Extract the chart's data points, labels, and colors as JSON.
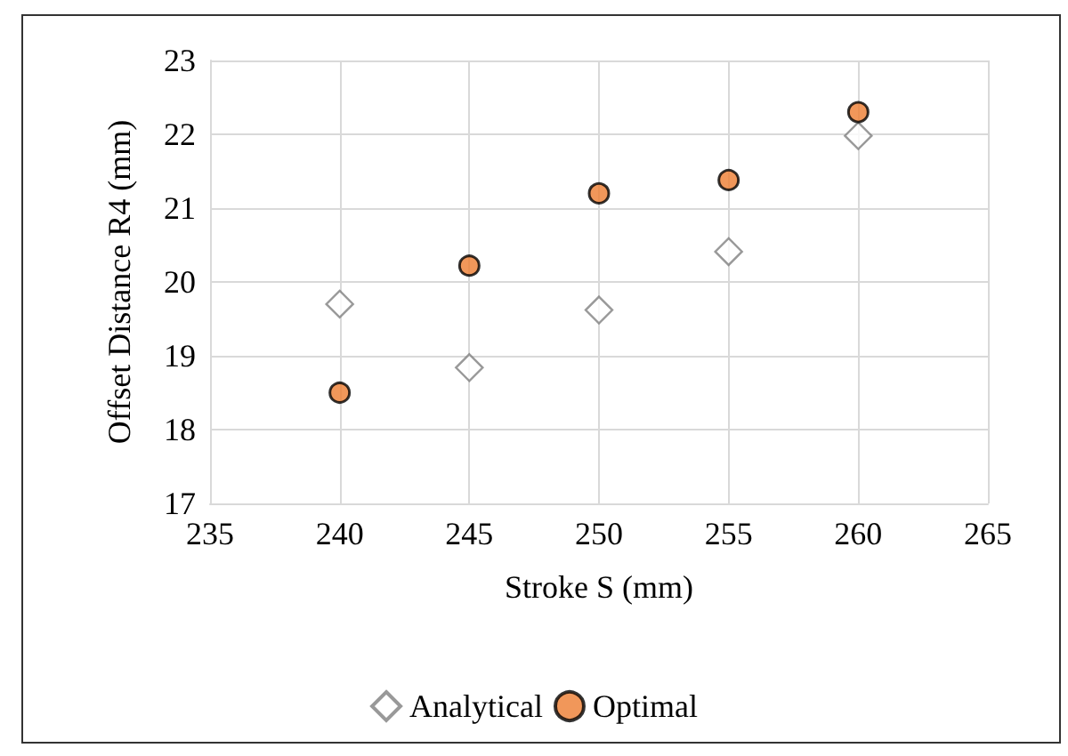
{
  "chart_data": {
    "type": "scatter",
    "xlabel": "Stroke S (mm)",
    "ylabel": "Offset Distance R4 (mm)",
    "series": [
      {
        "name": "Analytical",
        "color": "#ffffff",
        "marker": "diamond",
        "x": [
          240,
          245,
          250,
          255,
          260
        ],
        "values": [
          19.7,
          18.84,
          19.62,
          20.41,
          21.98
        ]
      },
      {
        "name": "Optimal",
        "color": "#ed7d31",
        "marker": "circle",
        "x": [
          240,
          245,
          250,
          255,
          260
        ],
        "values": [
          18.5,
          20.22,
          21.2,
          21.38,
          22.3
        ]
      }
    ],
    "xlim": [
      235,
      265
    ],
    "xticks": [
      235,
      240,
      245,
      250,
      255,
      260,
      265
    ],
    "ylim": [
      17,
      23
    ],
    "yticks": [
      17,
      18,
      19,
      20,
      21,
      22,
      23
    ],
    "grid": true,
    "legend": "bottom"
  }
}
